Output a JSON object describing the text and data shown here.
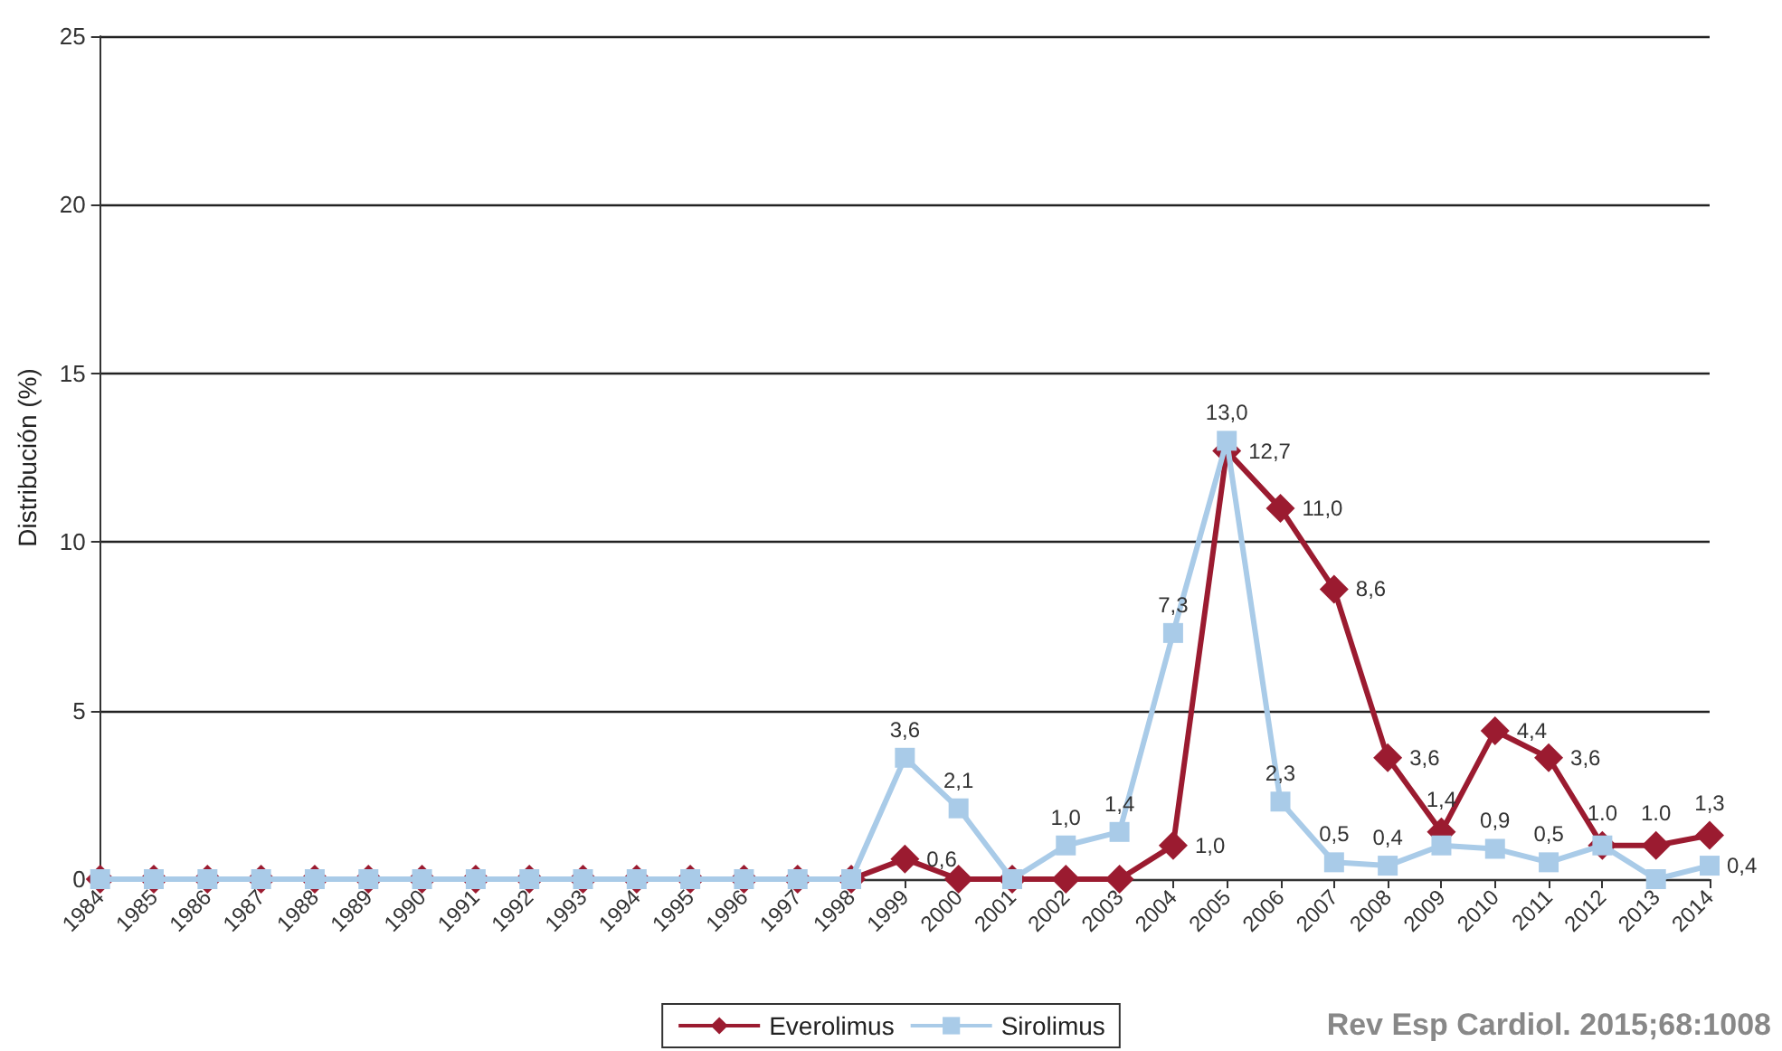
{
  "chart_data": {
    "type": "line",
    "ylabel": "Distribución (%)",
    "categories": [
      "1984",
      "1985",
      "1986",
      "1987",
      "1988",
      "1989",
      "1990",
      "1991",
      "1992",
      "1993",
      "1994",
      "1995",
      "1996",
      "1997",
      "1998",
      "1999",
      "2000",
      "2001",
      "2002",
      "2003",
      "2004",
      "2005",
      "2006",
      "2007",
      "2008",
      "2009",
      "2010",
      "2011",
      "2012",
      "2013",
      "2014"
    ],
    "series": [
      {
        "name": "Everolimus",
        "color": "#9b1b30",
        "marker": "diamond",
        "values": [
          0,
          0,
          0,
          0,
          0,
          0,
          0,
          0,
          0,
          0,
          0,
          0,
          0,
          0,
          0,
          0.6,
          0,
          0,
          0,
          0,
          1.0,
          12.7,
          11.0,
          8.6,
          3.6,
          1.4,
          4.4,
          3.6,
          1.0,
          1.0,
          1.3
        ],
        "value_labels": [
          null,
          null,
          null,
          null,
          null,
          null,
          null,
          null,
          null,
          null,
          null,
          null,
          null,
          null,
          null,
          "0,6",
          null,
          null,
          null,
          null,
          "1,0",
          "12,7",
          "11,0",
          "8,6",
          "3,6",
          "1,4",
          "4,4",
          "3,6",
          "1.0",
          "1.0",
          "1,3"
        ]
      },
      {
        "name": "Sirolimus",
        "color": "#a9cbe8",
        "marker": "square",
        "values": [
          0,
          0,
          0,
          0,
          0,
          0,
          0,
          0,
          0,
          0,
          0,
          0,
          0,
          0,
          0,
          3.6,
          2.1,
          0,
          1.0,
          1.4,
          7.3,
          13.0,
          2.3,
          0.5,
          0.4,
          1.0,
          0.9,
          0.5,
          1.0,
          0,
          0.4
        ],
        "value_labels": [
          null,
          null,
          null,
          null,
          null,
          null,
          null,
          null,
          null,
          null,
          null,
          null,
          null,
          null,
          null,
          "3,6",
          "2,1",
          null,
          "1,0",
          "1,4",
          "7,3",
          "13,0",
          "2,3",
          "0,5",
          "0,4",
          null,
          "0,9",
          "0,5",
          null,
          null,
          "0,4"
        ]
      }
    ],
    "ylim": [
      0,
      25
    ],
    "yticks": [
      0,
      5,
      10,
      15,
      20,
      25
    ],
    "grid": "y",
    "legend": "bottom",
    "line_style": "solid",
    "annotations": [
      "Rev Esp Cardiol. 2015;68:1008"
    ]
  }
}
